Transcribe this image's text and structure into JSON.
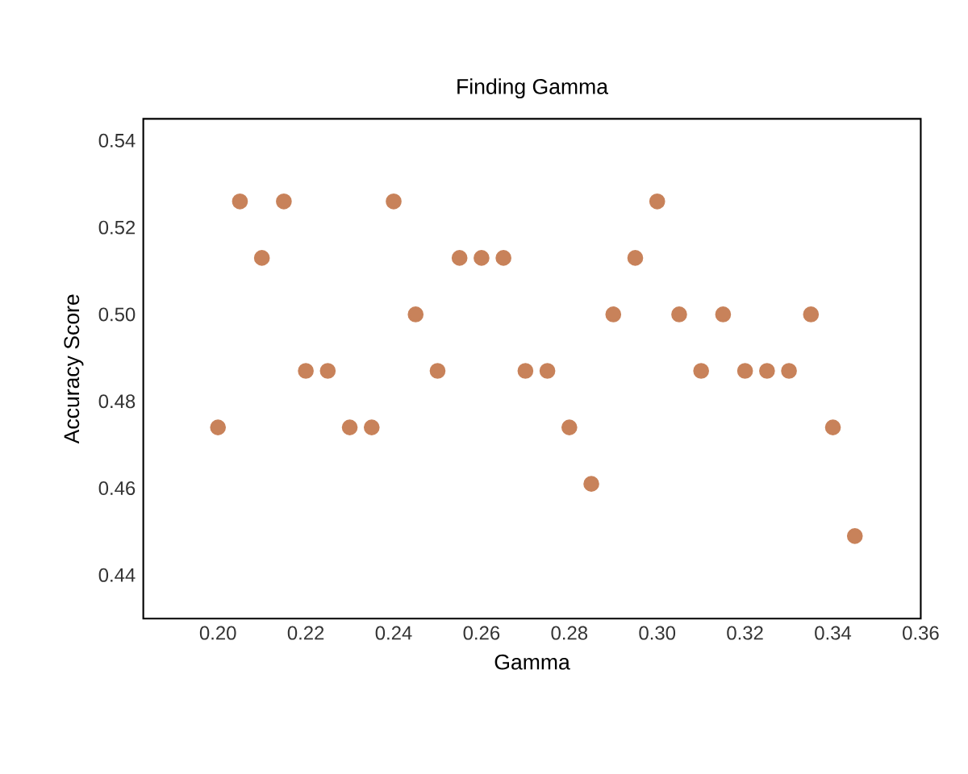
{
  "chart_data": {
    "type": "scatter",
    "title": "Finding Gamma",
    "xlabel": "Gamma",
    "ylabel": "Accuracy Score",
    "x": [
      0.2,
      0.205,
      0.21,
      0.215,
      0.22,
      0.225,
      0.23,
      0.235,
      0.24,
      0.245,
      0.25,
      0.255,
      0.26,
      0.265,
      0.27,
      0.275,
      0.28,
      0.285,
      0.29,
      0.295,
      0.3,
      0.305,
      0.31,
      0.315,
      0.32,
      0.325,
      0.33,
      0.335,
      0.34,
      0.345
    ],
    "values": [
      0.474,
      0.526,
      0.513,
      0.526,
      0.487,
      0.487,
      0.474,
      0.474,
      0.526,
      0.5,
      0.487,
      0.513,
      0.513,
      0.513,
      0.487,
      0.487,
      0.474,
      0.461,
      0.5,
      0.513,
      0.526,
      0.5,
      0.487,
      0.5,
      0.487,
      0.487,
      0.487,
      0.5,
      0.474,
      0.449
    ],
    "color": "#c8825a",
    "marker": "circle",
    "xlim": [
      0.183,
      0.36
    ],
    "xticks": [
      {
        "value": 0.2,
        "label": "0.20"
      },
      0.22,
      0.24,
      0.26,
      0.28,
      {
        "value": 0.3,
        "label": "0.30"
      },
      0.32,
      0.34,
      0.36
    ],
    "ylim": [
      0.43,
      0.545
    ],
    "yticks": [
      0.44,
      0.46,
      0.48,
      {
        "value": 0.5,
        "label": "0.50"
      },
      0.52,
      0.54
    ]
  }
}
